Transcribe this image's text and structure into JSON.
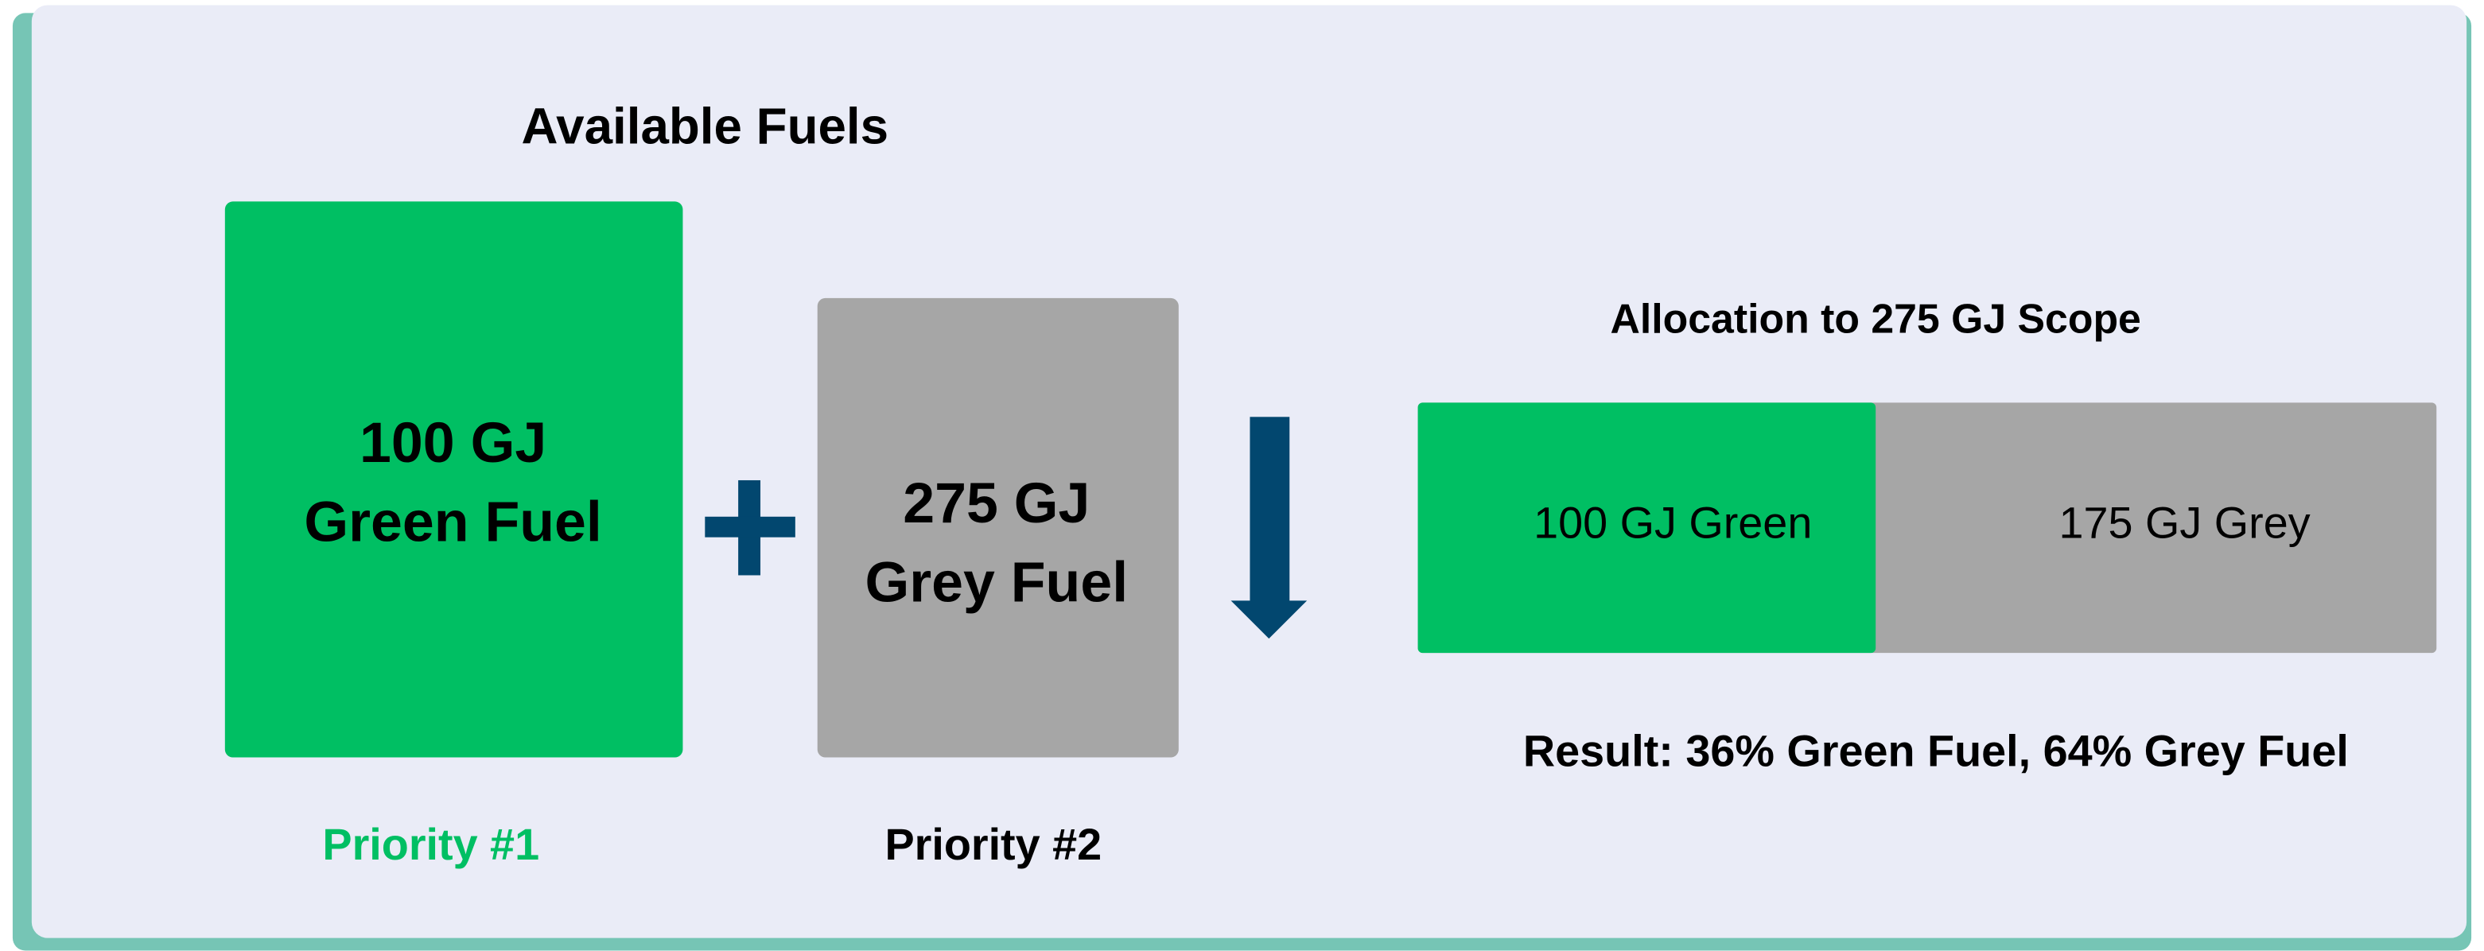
{
  "title": "Available Fuels",
  "fuels": [
    {
      "amount": "100 GJ",
      "name": "Green Fuel",
      "priority": "Priority #1"
    },
    {
      "amount": "275 GJ",
      "name": "Grey Fuel",
      "priority": "Priority #2"
    }
  ],
  "allocation": {
    "title": "Allocation to 275 GJ Scope",
    "segments": [
      "100 GJ Green",
      "175 GJ Grey"
    ],
    "result": "Result: 36% Green Fuel, 64% Grey Fuel"
  }
}
